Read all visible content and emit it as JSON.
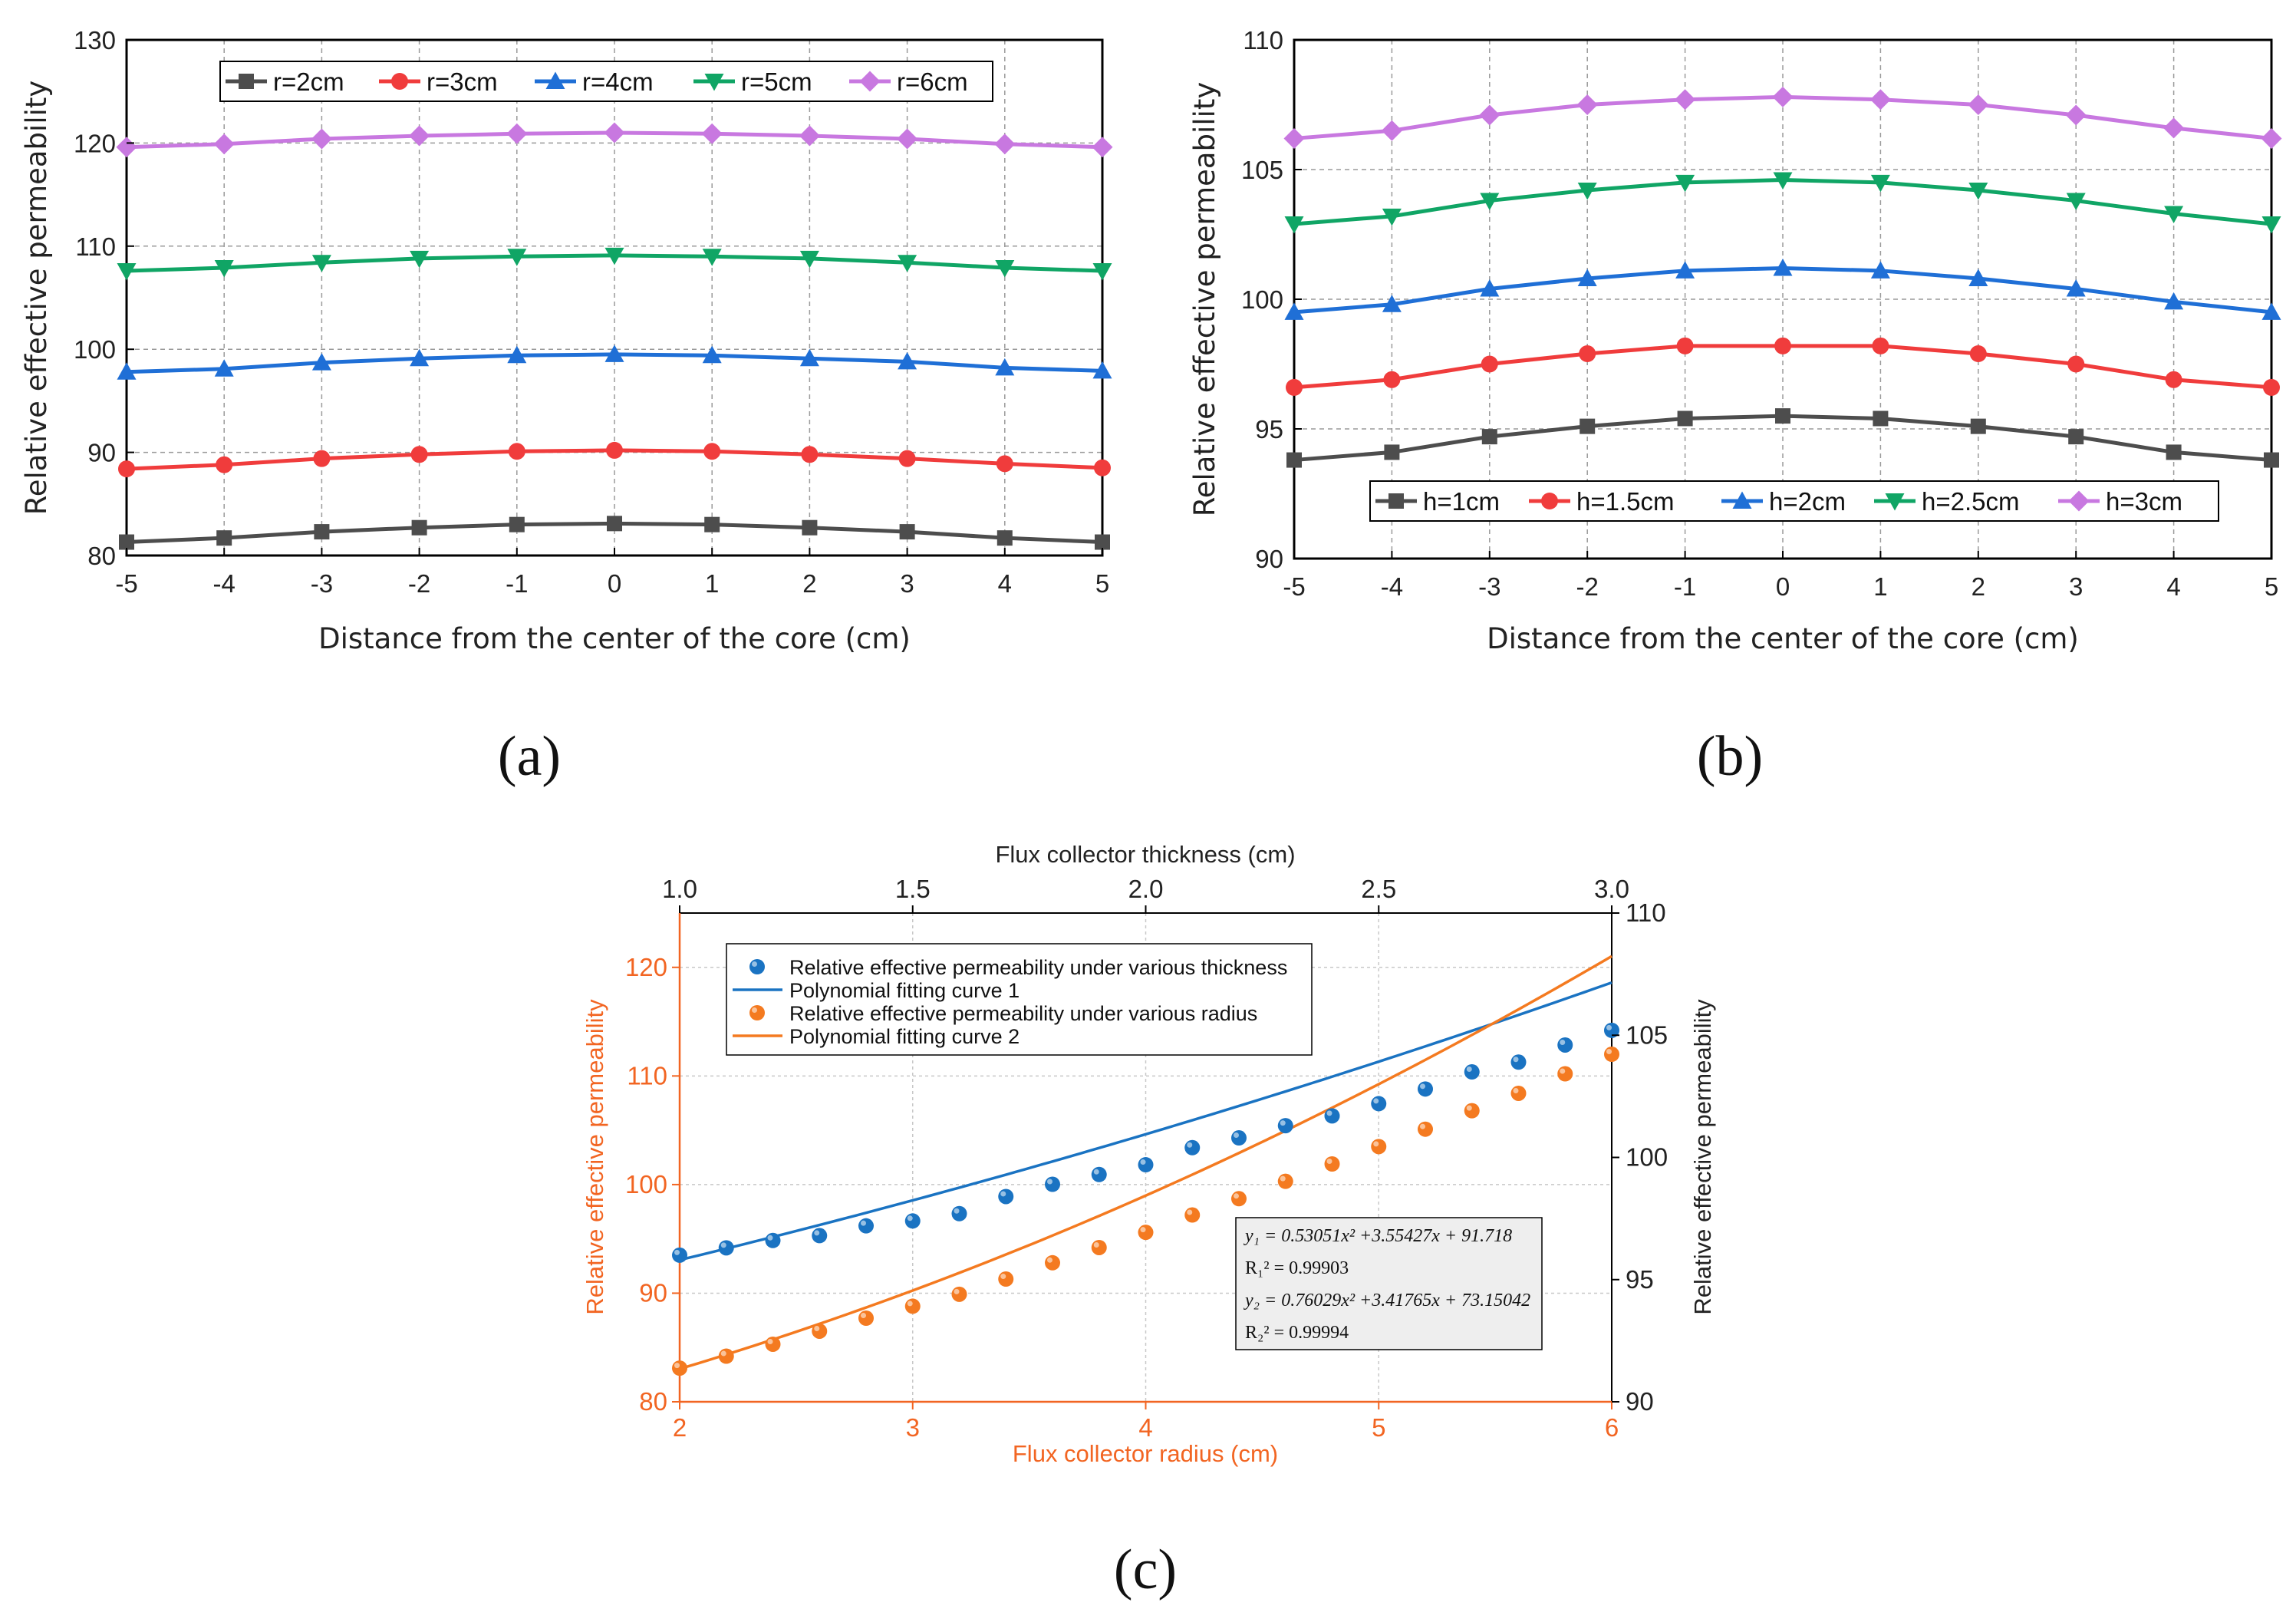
{
  "chart_data": [
    {
      "id": "a",
      "type": "line",
      "panel_label": "(a)",
      "xlabel": "Distance from the center of the core (cm)",
      "ylabel": "Relative effective permeability",
      "xlim": [
        -5,
        5
      ],
      "ylim": [
        80,
        130
      ],
      "xticks": [
        -5,
        -4,
        -3,
        -2,
        -1,
        0,
        1,
        2,
        3,
        4,
        5
      ],
      "yticks": [
        80,
        90,
        100,
        110,
        120,
        130
      ],
      "grid": true,
      "legend_position": "top",
      "x": [
        -5,
        -4,
        -3,
        -2,
        -1,
        0,
        1,
        2,
        3,
        4,
        5
      ],
      "series": [
        {
          "name": "r=2cm",
          "color": "#4d4d4d",
          "marker": "square",
          "values": [
            81.3,
            81.7,
            82.3,
            82.7,
            83.0,
            83.1,
            83.0,
            82.7,
            82.3,
            81.7,
            81.3
          ]
        },
        {
          "name": "r=3cm",
          "color": "#f03c3c",
          "marker": "circle",
          "values": [
            88.4,
            88.8,
            89.4,
            89.8,
            90.1,
            90.2,
            90.1,
            89.8,
            89.4,
            88.9,
            88.5
          ]
        },
        {
          "name": "r=4cm",
          "color": "#1f6fd6",
          "marker": "triangle-up",
          "values": [
            97.8,
            98.1,
            98.7,
            99.1,
            99.4,
            99.5,
            99.4,
            99.1,
            98.8,
            98.2,
            97.9
          ]
        },
        {
          "name": "r=5cm",
          "color": "#10a565",
          "marker": "triangle-down",
          "values": [
            107.6,
            107.9,
            108.4,
            108.8,
            109.0,
            109.1,
            109.0,
            108.8,
            108.4,
            107.9,
            107.6
          ]
        },
        {
          "name": "r=6cm",
          "color": "#c878e0",
          "marker": "diamond",
          "values": [
            119.6,
            119.9,
            120.4,
            120.7,
            120.9,
            121.0,
            120.9,
            120.7,
            120.4,
            119.9,
            119.6
          ]
        }
      ]
    },
    {
      "id": "b",
      "type": "line",
      "panel_label": "(b)",
      "xlabel": "Distance from the center of the core (cm)",
      "ylabel": "Relative effective permeability",
      "xlim": [
        -5,
        5
      ],
      "ylim": [
        90,
        110
      ],
      "xticks": [
        -5,
        -4,
        -3,
        -2,
        -1,
        0,
        1,
        2,
        3,
        4,
        5
      ],
      "yticks": [
        90,
        95,
        100,
        105,
        110
      ],
      "grid": true,
      "legend_position": "bottom",
      "x": [
        -5,
        -4,
        -3,
        -2,
        -1,
        0,
        1,
        2,
        3,
        4,
        5
      ],
      "series": [
        {
          "name": "h=1cm",
          "color": "#4d4d4d",
          "marker": "square",
          "values": [
            93.8,
            94.1,
            94.7,
            95.1,
            95.4,
            95.5,
            95.4,
            95.1,
            94.7,
            94.1,
            93.8
          ]
        },
        {
          "name": "h=1.5cm",
          "color": "#f03c3c",
          "marker": "circle",
          "values": [
            96.6,
            96.9,
            97.5,
            97.9,
            98.2,
            98.2,
            98.2,
            97.9,
            97.5,
            96.9,
            96.6
          ]
        },
        {
          "name": "h=2cm",
          "color": "#1f6fd6",
          "marker": "triangle-up",
          "values": [
            99.5,
            99.8,
            100.4,
            100.8,
            101.1,
            101.2,
            101.1,
            100.8,
            100.4,
            99.9,
            99.5
          ]
        },
        {
          "name": "h=2.5cm",
          "color": "#10a565",
          "marker": "triangle-down",
          "values": [
            102.9,
            103.2,
            103.8,
            104.2,
            104.5,
            104.6,
            104.5,
            104.2,
            103.8,
            103.3,
            102.9
          ]
        },
        {
          "name": "h=3cm",
          "color": "#c878e0",
          "marker": "diamond",
          "values": [
            106.2,
            106.5,
            107.1,
            107.5,
            107.7,
            107.8,
            107.7,
            107.5,
            107.1,
            106.6,
            106.2
          ]
        }
      ]
    },
    {
      "id": "c",
      "type": "scatter",
      "panel_label": "(c)",
      "xlabel": "Flux collector radius (cm)",
      "ylabel": "Relative effective permeability",
      "xlabel_top": "Flux collector thickness (cm)",
      "ylabel_right": "Relative effective permeability",
      "xlim": [
        2,
        6
      ],
      "ylim": [
        80,
        125
      ],
      "xlim_top": [
        1.0,
        3.0
      ],
      "ylim_right": [
        90,
        110
      ],
      "xticks": [
        2,
        3,
        4,
        5,
        6
      ],
      "yticks": [
        80,
        90,
        100,
        110,
        120
      ],
      "xticks_top": [
        "1.0",
        "1.5",
        "2.0",
        "2.5",
        "3.0"
      ],
      "yticks_right": [
        90,
        95,
        100,
        105,
        110
      ],
      "grid": true,
      "legend_position": "top-left",
      "series": [
        {
          "name": "Relative effective permeability under various thickness",
          "color": "#1a73c2",
          "kind": "points",
          "axis": "top-right",
          "x": [
            1.0,
            1.1,
            1.2,
            1.3,
            1.4,
            1.5,
            1.6,
            1.7,
            1.8,
            1.9,
            2.0,
            2.1,
            2.2,
            2.3,
            2.4,
            2.5,
            2.6,
            2.7,
            2.8,
            2.9,
            3.0
          ],
          "y": [
            96.0,
            96.3,
            96.6,
            96.8,
            97.2,
            97.4,
            97.7,
            98.4,
            98.9,
            99.3,
            99.7,
            100.4,
            100.8,
            101.3,
            101.7,
            102.2,
            102.8,
            103.5,
            103.9,
            104.6,
            105.2
          ]
        },
        {
          "name": "Polynomial fitting curve 1",
          "color": "#1a73c2",
          "kind": "fit",
          "axis": "top-right",
          "coeffs": [
            0.53051,
            3.55427,
            91.718
          ]
        },
        {
          "name": "Relative effective permeability under various radius",
          "color": "#f47a20",
          "kind": "points",
          "axis": "bottom-left",
          "x": [
            2.0,
            2.2,
            2.4,
            2.6,
            2.8,
            3.0,
            3.2,
            3.4,
            3.6,
            3.8,
            4.0,
            4.2,
            4.4,
            4.6,
            4.8,
            5.0,
            5.2,
            5.4,
            5.6,
            5.8,
            6.0
          ],
          "y": [
            83.1,
            84.2,
            85.3,
            86.5,
            87.7,
            88.8,
            89.9,
            91.3,
            92.8,
            94.2,
            95.6,
            97.2,
            98.7,
            100.3,
            101.9,
            103.5,
            105.1,
            106.8,
            108.4,
            110.2,
            112.0
          ]
        },
        {
          "name": "Polynomial fitting curve 2",
          "color": "#f47a20",
          "kind": "fit",
          "axis": "bottom-left",
          "coeffs": [
            0.76029,
            3.41765,
            73.15042
          ]
        }
      ],
      "equations": {
        "y1_eq": "y₁ = 0.53051x² +3.55427x + 91.718",
        "r1": "R₁² = 0.99903",
        "y2_eq": "y₂ = 0.76029x² +3.41765x + 73.15042",
        "r2": "R₂² = 0.99994"
      }
    }
  ]
}
